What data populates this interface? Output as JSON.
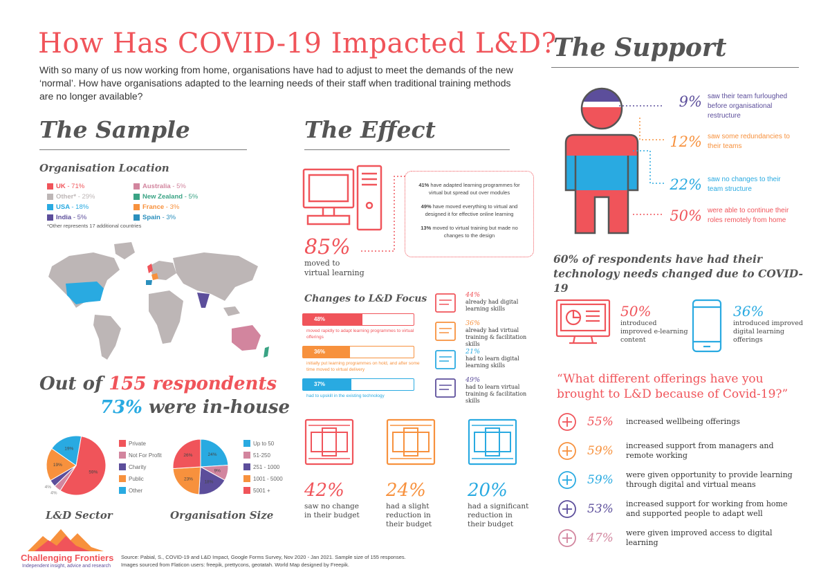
{
  "header": {
    "title": "How Has COVID-19 Impacted L&D?",
    "intro": "With so many of us now working from home, organisations have had to adjust to meet the demands of the new ‘normal’. How have organisations adapted to the learning needs of their staff when traditional training methods are no longer available?"
  },
  "colors": {
    "red": "#f0545a",
    "grey": "#bdb6b6",
    "blue": "#29aae1",
    "purple": "#5c4e9b",
    "pink": "#d2859e",
    "green": "#3aa384",
    "orange": "#f7913d",
    "teal": "#2a8fbd"
  },
  "sample": {
    "heading": "The Sample",
    "location_heading": "Organisation Location",
    "locations": [
      {
        "label": "UK",
        "pct": "71%",
        "color": "#f0545a"
      },
      {
        "label": "Other*",
        "pct": "29%",
        "color": "#bdb6b6"
      },
      {
        "label": "USA",
        "pct": "18%",
        "color": "#29aae1"
      },
      {
        "label": "India",
        "pct": "5%",
        "color": "#5c4e9b"
      },
      {
        "label": "Australia",
        "pct": "5%",
        "color": "#d2859e"
      },
      {
        "label": "New Zealand",
        "pct": "5%",
        "color": "#3aa384"
      },
      {
        "label": "France",
        "pct": "3%",
        "color": "#f7913d"
      },
      {
        "label": "Spain",
        "pct": "3%",
        "color": "#2a8fbd"
      }
    ],
    "footnote": "*Other represents 17 additional countries",
    "respondents_line1_pre": "Out of ",
    "respondents_line1_num": "155 respondents",
    "respondents_line2_num": "73%",
    "respondents_line2_post": " were in-house",
    "sector_label": "L&D Sector",
    "size_label": "Organisation Size"
  },
  "chart_data": [
    {
      "type": "pie",
      "title": "L&D Sector",
      "categories": [
        "Private",
        "Not For Profit",
        "Charity",
        "Public",
        "Other"
      ],
      "values": [
        59,
        4,
        4,
        19,
        19
      ],
      "colors": [
        "#f0545a",
        "#d2859e",
        "#5c4e9b",
        "#f7913d",
        "#29aae1"
      ],
      "labels": [
        "59%",
        "4%",
        "4%",
        "19%",
        "19%"
      ]
    },
    {
      "type": "pie",
      "title": "Organisation Size",
      "categories": [
        "Up to 50",
        "51-250",
        "251 - 1000",
        "1001 - 5000",
        "5001 +"
      ],
      "values": [
        24,
        9,
        18,
        23,
        26
      ],
      "colors": [
        "#29aae1",
        "#d2859e",
        "#5c4e9b",
        "#f7913d",
        "#f0545a"
      ],
      "labels": [
        "24%",
        "9%",
        "18%",
        "23%",
        "26%"
      ]
    }
  ],
  "effect": {
    "heading": "The Effect",
    "virtual_pct": "85%",
    "virtual_caption": "moved to virtual learning",
    "details": [
      {
        "pct": "41%",
        "text": "have adapted learning programmes for virtual but spread out over modules"
      },
      {
        "pct": "49%",
        "text": "have moved everything to virtual and designed it for effective online learning"
      },
      {
        "pct": "13%",
        "text": "moved to virtual training but made no changes to the design"
      }
    ],
    "focus_heading": "Changes to L&D Focus",
    "focus_bars": [
      {
        "pct": "48%",
        "value": 48,
        "color": "#f0545a",
        "text": "moved rapidly to adapt learning programmes to virtual offerings"
      },
      {
        "pct": "36%",
        "value": 36,
        "color": "#f7913d",
        "text": "initially put learning programmes on hold, and after some time moved to virtual delivery"
      },
      {
        "pct": "37%",
        "value": 37,
        "color": "#29aae1",
        "text": "had to upskill in the existing technology"
      }
    ],
    "skills": [
      {
        "pct": "44%",
        "text": "already had digital learning skills",
        "color": "#f0545a",
        "icon": "media-icon"
      },
      {
        "pct": "36%",
        "text": "already had virtual training & facilitation skills",
        "color": "#f7913d",
        "icon": "graduation-screen-icon"
      },
      {
        "pct": "21%",
        "text": "had to learn digital learning skills",
        "color": "#29aae1",
        "icon": "laptop-book-icon"
      },
      {
        "pct": "49%",
        "text": "had to learn virtual training & facilitation skills",
        "color": "#5c4e9b",
        "icon": "presentation-icon"
      }
    ],
    "budgets": [
      {
        "pct": "42%",
        "text": "saw no change in their budget",
        "color": "#f0545a"
      },
      {
        "pct": "24%",
        "text": "had a slight reduction in their budget",
        "color": "#f7913d"
      },
      {
        "pct": "20%",
        "text": "had a significant reduction in their budget",
        "color": "#29aae1"
      }
    ]
  },
  "support": {
    "heading": "The Support",
    "stats": [
      {
        "pct": "9%",
        "text": "saw their team furloughed before organisational restructure",
        "color": "#5c4e9b"
      },
      {
        "pct": "12%",
        "text": "saw some redundancies to their teams",
        "color": "#f7913d"
      },
      {
        "pct": "22%",
        "text": "saw no changes to their team structure",
        "color": "#29aae1"
      },
      {
        "pct": "50%",
        "text": "were able to continue their roles remotely from home",
        "color": "#f0545a"
      }
    ],
    "tech_heading": "60% of respondents have had their technology needs changed due to COVID-19",
    "tech": [
      {
        "pct": "50%",
        "text": "introduced improved e-learning content",
        "color": "#f0545a"
      },
      {
        "pct": "36%",
        "text": "introduced improved digital learning offerings",
        "color": "#29aae1"
      }
    ],
    "question": "“What different offerings have you brought to L&D because of Covid-19?”",
    "offerings": [
      {
        "pct": "55%",
        "text": "increased wellbeing offerings",
        "color": "#f0545a",
        "icon": "hand-cross-icon"
      },
      {
        "pct": "59%",
        "text": "increased support from managers and remote working",
        "color": "#f7913d",
        "icon": "globe-people-icon"
      },
      {
        "pct": "59%",
        "text": "were given opportunity to provide learning through digital and virtual means",
        "color": "#29aae1",
        "icon": "laptop-icon"
      },
      {
        "pct": "53%",
        "text": "increased support for working from home and supported people to adapt well",
        "color": "#5c4e9b",
        "icon": "heart-hands-icon"
      },
      {
        "pct": "47%",
        "text": "were given improved access to digital learning",
        "color": "#d2859e",
        "icon": "arrow-up-icon"
      }
    ]
  },
  "footer": {
    "brand": "Challenging Frontiers",
    "tagline": "Independent insight, advice and research",
    "source": "Source: Pabial, S., COVID-19 and L&D Impact, Google Forms Survey, Nov 2020 - Jan 2021. Sample size of 155 responses.",
    "credits": "Images sourced from Flaticon users: freepik, prettycons, geotatah. World Map designed by Freepik."
  }
}
